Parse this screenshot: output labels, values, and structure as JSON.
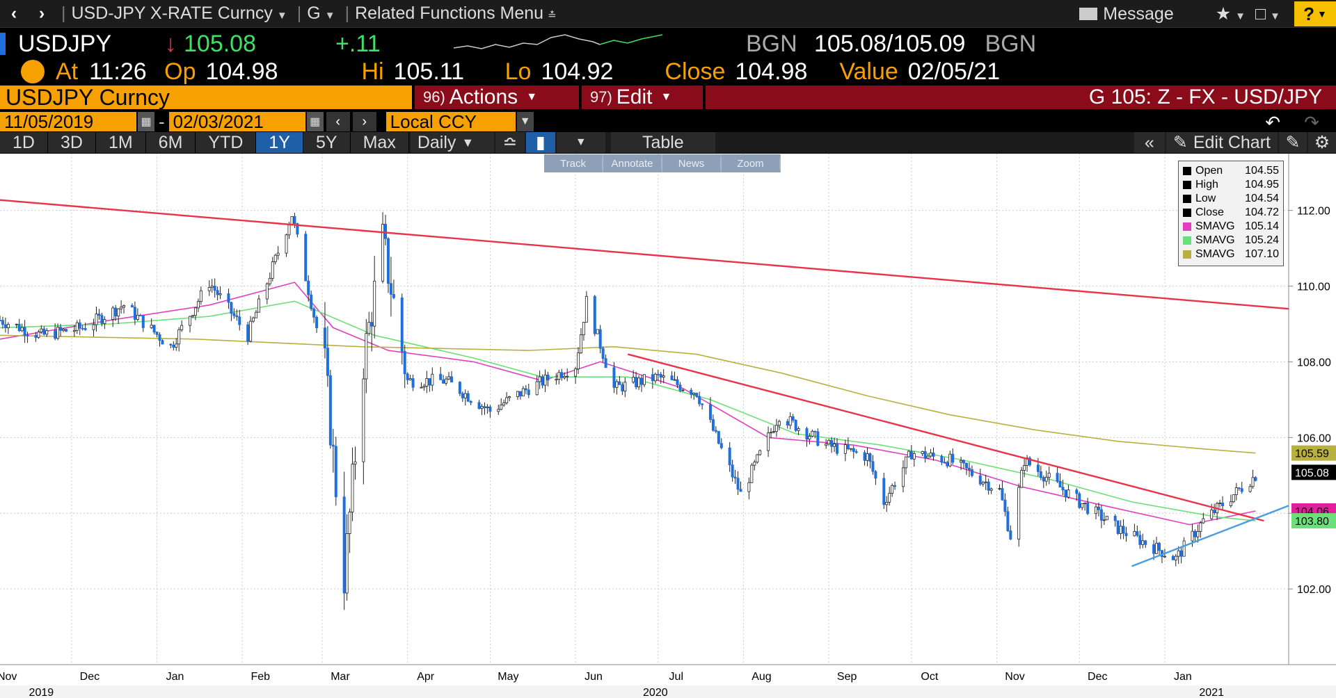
{
  "topbar": {
    "security": "USD-JPY X-RATE Curncy",
    "source": "G",
    "related": "Related Functions Menu",
    "message": "Message",
    "help": "?"
  },
  "quote": {
    "ticker": "USDJPY",
    "last": "105.08",
    "change": "+.11",
    "bid_src": "BGN",
    "bid": "105.08",
    "slash": "/",
    "ask": "105.09",
    "ask_src": "BGN",
    "at_label": "At",
    "time": "11:26",
    "op_label": "Op",
    "open": "104.98",
    "hi_label": "Hi",
    "high": "105.11",
    "lo_label": "Lo",
    "low": "104.92",
    "close_label": "Close",
    "close": "104.98",
    "value_label": "Value",
    "value_date": "02/05/21"
  },
  "toolbar": {
    "security_box": "USDJPY Curncy",
    "actions_num": "96)",
    "actions": "Actions",
    "edit_num": "97)",
    "edit": "Edit",
    "page_title": "G 105: Z - FX - USD/JPY",
    "date_from": "11/05/2019",
    "date_to": "02/03/2021",
    "dash": "-",
    "ccy": "Local CCY",
    "ranges": [
      "1D",
      "3D",
      "1M",
      "6M",
      "YTD",
      "1Y",
      "5Y",
      "Max"
    ],
    "active_range": "1Y",
    "period": "Daily",
    "table": "Table",
    "edit_chart": "Edit Chart",
    "float_tools": [
      "Track",
      "Annotate",
      "News",
      "Zoom"
    ]
  },
  "chart_data": {
    "type": "line",
    "subtype": "candlestick",
    "title": "",
    "x_range": [
      "2019-11-05",
      "2021-02-03"
    ],
    "ylim": [
      100.0,
      113.5
    ],
    "y_ticks": [
      "112.00",
      "110.00",
      "108.00",
      "106.00",
      "104.00",
      "102.00"
    ],
    "y_tick_values": [
      112,
      110,
      108,
      106,
      104,
      102
    ],
    "months": [
      {
        "label": "Nov",
        "date": "2019-11-01"
      },
      {
        "label": "Dec",
        "date": "2019-12-01"
      },
      {
        "label": "Jan",
        "date": "2020-01-01"
      },
      {
        "label": "Feb",
        "date": "2020-02-01"
      },
      {
        "label": "Mar",
        "date": "2020-03-01"
      },
      {
        "label": "Apr",
        "date": "2020-04-01"
      },
      {
        "label": "May",
        "date": "2020-05-01"
      },
      {
        "label": "Jun",
        "date": "2020-06-01"
      },
      {
        "label": "Jul",
        "date": "2020-07-01"
      },
      {
        "label": "Aug",
        "date": "2020-08-01"
      },
      {
        "label": "Sep",
        "date": "2020-09-01"
      },
      {
        "label": "Oct",
        "date": "2020-10-01"
      },
      {
        "label": "Nov",
        "date": "2020-11-01"
      },
      {
        "label": "Dec",
        "date": "2020-12-01"
      },
      {
        "label": "Jan",
        "date": "2021-01-01"
      }
    ],
    "years": [
      {
        "label": "2019",
        "date": "2019-11-20"
      },
      {
        "label": "2020",
        "date": "2020-06-30"
      },
      {
        "label": "2021",
        "date": "2021-01-18"
      }
    ],
    "series": [
      {
        "name": "Close",
        "color": "#1e6fe0",
        "x": [
          "2019-11-05",
          "2019-11-20",
          "2019-12-05",
          "2019-12-20",
          "2020-01-06",
          "2020-01-20",
          "2020-02-03",
          "2020-02-19",
          "2020-03-02",
          "2020-03-09",
          "2020-03-16",
          "2020-03-23",
          "2020-04-01",
          "2020-04-15",
          "2020-05-01",
          "2020-05-15",
          "2020-06-01",
          "2020-06-05",
          "2020-06-15",
          "2020-07-01",
          "2020-07-15",
          "2020-07-31",
          "2020-08-14",
          "2020-08-31",
          "2020-09-15",
          "2020-09-21",
          "2020-10-01",
          "2020-10-15",
          "2020-11-02",
          "2020-11-06",
          "2020-11-11",
          "2020-12-01",
          "2020-12-15",
          "2021-01-05",
          "2021-01-15",
          "2021-02-03"
        ],
        "values": [
          109.1,
          108.7,
          108.9,
          109.5,
          108.4,
          110.1,
          108.7,
          111.9,
          107.9,
          102.3,
          108.0,
          111.2,
          107.5,
          107.5,
          106.7,
          107.3,
          107.9,
          109.6,
          107.3,
          107.6,
          107.2,
          104.5,
          106.6,
          105.8,
          105.5,
          104.3,
          105.6,
          105.4,
          104.6,
          103.4,
          105.4,
          104.3,
          103.6,
          102.8,
          103.8,
          105.0
        ]
      },
      {
        "name": "SMAVG",
        "color": "#e040c0",
        "x": [
          "2019-11-05",
          "2019-12-15",
          "2020-01-20",
          "2020-02-20",
          "2020-03-05",
          "2020-03-25",
          "2020-04-25",
          "2020-05-20",
          "2020-06-10",
          "2020-07-10",
          "2020-08-10",
          "2020-09-10",
          "2020-10-10",
          "2020-11-10",
          "2020-12-10",
          "2021-01-10",
          "2021-02-03"
        ],
        "values": [
          108.6,
          109.1,
          109.5,
          110.1,
          108.9,
          108.3,
          108.0,
          107.5,
          108.0,
          107.3,
          106.0,
          105.8,
          105.4,
          104.7,
          104.2,
          103.7,
          104.06
        ]
      },
      {
        "name": "SMAVG",
        "color": "#6be07a",
        "x": [
          "2019-11-05",
          "2019-12-15",
          "2020-01-20",
          "2020-02-20",
          "2020-03-20",
          "2020-04-25",
          "2020-05-20",
          "2020-06-20",
          "2020-07-20",
          "2020-08-20",
          "2020-09-20",
          "2020-10-20",
          "2020-11-20",
          "2020-12-20",
          "2021-01-20",
          "2021-02-03"
        ],
        "values": [
          108.9,
          109.0,
          109.2,
          109.6,
          108.7,
          108.1,
          107.6,
          107.6,
          107.0,
          106.1,
          105.8,
          105.4,
          104.9,
          104.3,
          103.9,
          103.8
        ]
      },
      {
        "name": "SMAVG",
        "color": "#b8b040",
        "x": [
          "2019-11-05",
          "2020-01-15",
          "2020-03-15",
          "2020-05-15",
          "2020-06-15",
          "2020-07-15",
          "2020-08-15",
          "2020-09-15",
          "2020-10-15",
          "2020-11-15",
          "2020-12-15",
          "2021-01-15",
          "2021-02-03"
        ],
        "values": [
          108.7,
          108.6,
          108.4,
          108.3,
          108.4,
          108.2,
          107.7,
          107.1,
          106.6,
          106.2,
          105.9,
          105.7,
          105.59
        ]
      }
    ],
    "trendlines": [
      {
        "color": "#e8334a",
        "from": [
          "2019-11-01",
          112.3
        ],
        "to": [
          "2021-02-15",
          109.4
        ]
      },
      {
        "color": "#e8334a",
        "from": [
          "2020-06-20",
          108.2
        ],
        "to": [
          "2021-02-06",
          103.8
        ]
      },
      {
        "color": "#4a9de0",
        "from": [
          "2020-12-20",
          102.6
        ],
        "to": [
          "2021-02-15",
          104.2
        ]
      }
    ],
    "price_tags": [
      {
        "label": "105.59",
        "value": 105.59,
        "color": "#b8b040"
      },
      {
        "label": "105.08",
        "value": 105.08,
        "color": "#000000"
      },
      {
        "label": "104.06",
        "value": 104.06,
        "color": "#e0209a"
      },
      {
        "label": "103.80",
        "value": 103.8,
        "color": "#6be07a"
      }
    ],
    "legend": [
      {
        "name": "Open",
        "value": "104.55",
        "color": "#000000"
      },
      {
        "name": "High",
        "value": "104.95",
        "color": "#000000"
      },
      {
        "name": "Low",
        "value": "104.54",
        "color": "#000000"
      },
      {
        "name": "Close",
        "value": "104.72",
        "color": "#000000"
      },
      {
        "name": "SMAVG",
        "value": "105.14",
        "color": "#e040c0"
      },
      {
        "name": "SMAVG",
        "value": "105.24",
        "color": "#6be07a"
      },
      {
        "name": "SMAVG",
        "value": "107.10",
        "color": "#b8b040"
      }
    ],
    "legend_position": "top-right",
    "grid": true
  }
}
